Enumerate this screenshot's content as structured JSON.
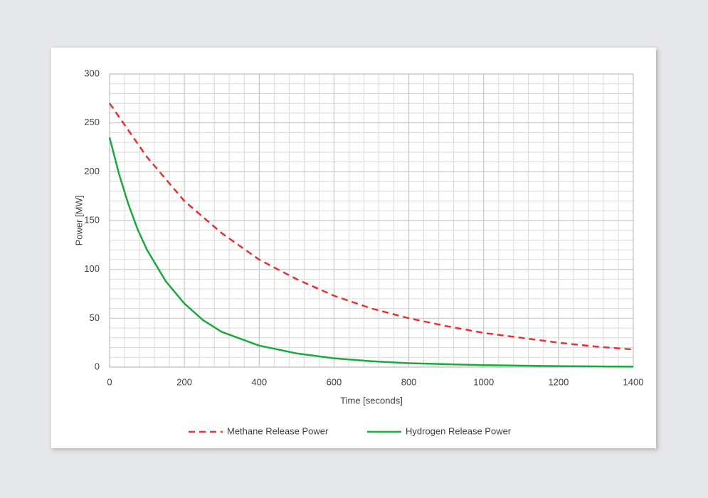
{
  "chart_data": {
    "type": "line",
    "xlabel": "Time [seconds]",
    "ylabel": "Power [MW]",
    "xlim": [
      0,
      1400
    ],
    "xticks": [
      0,
      200,
      400,
      600,
      800,
      1000,
      1200,
      1400
    ],
    "ylim": [
      0,
      300
    ],
    "yticks": [
      0,
      50,
      100,
      150,
      200,
      250,
      300
    ],
    "x_minor_ticks": [
      40,
      80,
      120,
      160,
      240,
      280,
      320,
      360,
      440,
      480,
      520,
      560,
      640,
      680,
      720,
      760,
      840,
      880,
      920,
      960,
      1040,
      1080,
      1120,
      1160,
      1240,
      1280,
      1320,
      1360
    ],
    "y_minor_ticks": [
      10,
      20,
      30,
      40,
      60,
      70,
      80,
      90,
      110,
      120,
      130,
      140,
      160,
      170,
      180,
      190,
      210,
      220,
      230,
      240,
      260,
      270,
      280,
      290
    ],
    "grid": true,
    "legend": "bottom",
    "series": [
      {
        "name": "Methane Release Power",
        "color": "#e8312f",
        "dash": true,
        "x": [
          0,
          100,
          200,
          300,
          400,
          500,
          600,
          700,
          800,
          900,
          1000,
          1100,
          1200,
          1300,
          1400
        ],
        "values": [
          270,
          215,
          170,
          137,
          110,
          90,
          73,
          60,
          50,
          42,
          35,
          30,
          25,
          21,
          18
        ]
      },
      {
        "name": "Hydrogen Release Power",
        "color": "#1aaa3b",
        "dash": false,
        "x": [
          0,
          25,
          50,
          75,
          100,
          150,
          200,
          250,
          300,
          400,
          500,
          600,
          700,
          800,
          900,
          1000,
          1200,
          1400
        ],
        "values": [
          235,
          198,
          167,
          141,
          120,
          88,
          65,
          48,
          36,
          22,
          14,
          9,
          6,
          4,
          3,
          2,
          1,
          0.5
        ]
      }
    ]
  }
}
